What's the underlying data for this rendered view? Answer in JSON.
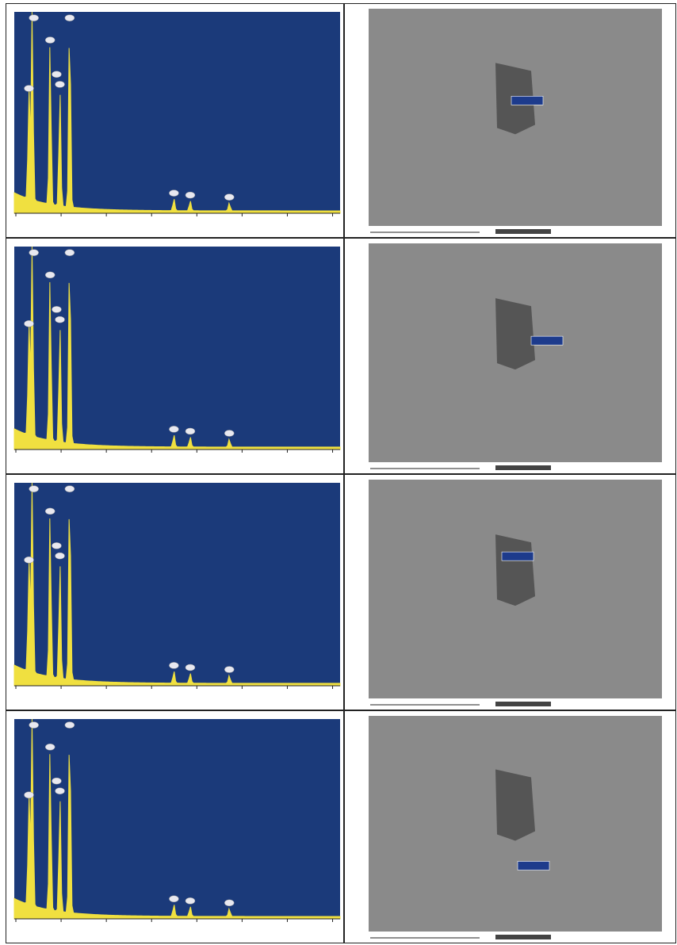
{
  "colors": {
    "eds_bg": "#1b3a7a",
    "eds_spectrum": "#f0e040",
    "eds_marker": "#e8e8f0",
    "sem_bg": "#8a8a8a",
    "particle": "#555555",
    "label_box": "#1d3b8c"
  },
  "rows": [
    {
      "eds": {
        "tag": "",
        "left_caption": "",
        "right_caption": "",
        "axis_ticks": [],
        "x_unit": ""
      },
      "sem": {
        "spot_label": "",
        "footer_label": "",
        "scale_label": ""
      }
    },
    {
      "eds": {
        "tag": "",
        "left_caption": "",
        "right_caption": "",
        "axis_ticks": [],
        "x_unit": ""
      },
      "sem": {
        "spot_label": "",
        "footer_label": "",
        "scale_label": ""
      }
    },
    {
      "eds": {
        "tag": "",
        "left_caption": "",
        "right_caption": "",
        "axis_ticks": [],
        "x_unit": ""
      },
      "sem": {
        "spot_label": "",
        "footer_label": "",
        "scale_label": ""
      }
    },
    {
      "eds": {
        "tag": "",
        "left_caption": "",
        "right_caption": "",
        "axis_ticks": [],
        "x_unit": ""
      },
      "sem": {
        "spot_label": "",
        "footer_label": "",
        "scale_label": ""
      }
    }
  ]
}
